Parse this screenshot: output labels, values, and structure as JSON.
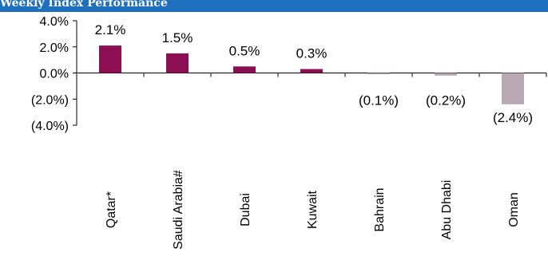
{
  "header": {
    "title": "Weekly Index Performance"
  },
  "colors": {
    "header_bg": "#1f6fbf",
    "positive_bar": "#8b0f52",
    "negative_bar": "#b9a7b4"
  },
  "chart_data": {
    "type": "bar",
    "title": "Weekly Index Performance",
    "categories": [
      "Qatar*",
      "Saudi Arabia#",
      "Dubai",
      "Kuwait",
      "Bahrain",
      "Abu Dhabi",
      "Oman"
    ],
    "values": [
      2.1,
      1.5,
      0.5,
      0.3,
      -0.1,
      -0.2,
      -2.4
    ],
    "data_labels": [
      "2.1%",
      "1.5%",
      "0.5%",
      "0.3%",
      "(0.1%)",
      "(0.2%)",
      "(2.4%)"
    ],
    "y_ticks": [
      4,
      2,
      0,
      -2,
      -4
    ],
    "y_tick_labels": [
      "4.0%",
      "2.0%",
      "0.0%",
      "(2.0%)",
      "(4.0%)"
    ],
    "ylim": [
      -4,
      4
    ],
    "grid": false,
    "legend": "none",
    "xlabel": "",
    "ylabel": ""
  }
}
